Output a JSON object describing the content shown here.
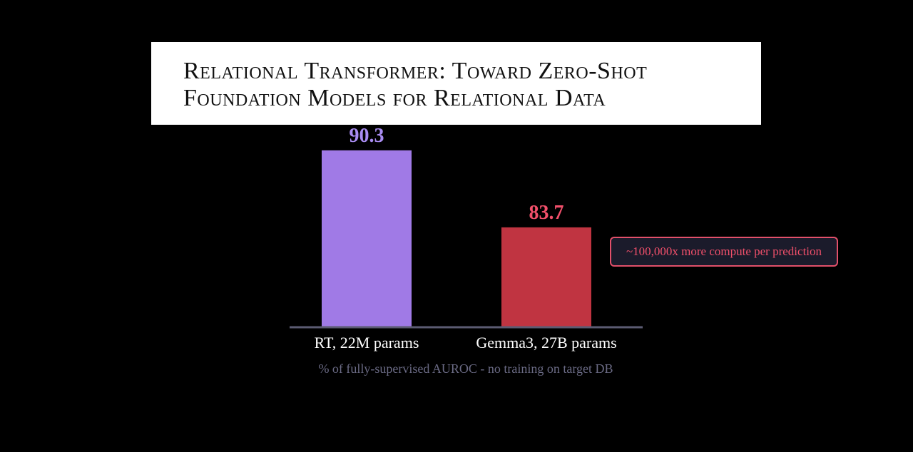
{
  "chart_data": {
    "type": "bar",
    "title": "Relational Transformer:  Toward Zero-Shot Foundation Models for Relational Data",
    "categories": [
      "RT, 22M params",
      "Gemma3, 27B params"
    ],
    "values": [
      90.3,
      83.7
    ],
    "colors": [
      "#a07ae6",
      "#c03441"
    ],
    "label_colors": [
      "#a98cf2",
      "#f2506b"
    ],
    "ylim": [
      75.14,
      95
    ],
    "x_label": "% of fully-supervised AUROC - no training on target DB",
    "annotation": "~100,000x more compute per prediction"
  }
}
